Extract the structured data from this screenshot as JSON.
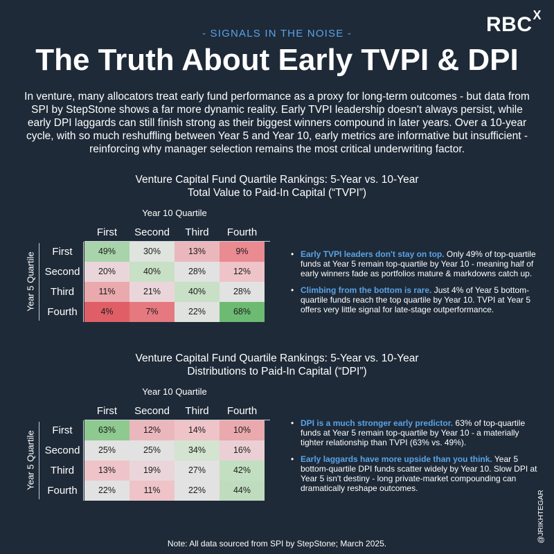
{
  "logo": {
    "main": "RBC",
    "sup": "X"
  },
  "kicker": "- SIGNALS IN THE NOISE -",
  "title": "The Truth About Early TVPI & DPI",
  "intro": "In venture, many allocators treat early fund performance as a proxy for long-term outcomes - but data from SPI by StepStone shows a far more dynamic reality. Early TVPI leadership doesn't always persist, while early DPI laggards can still finish strong as their biggest winners compound in later years. Over a 10-year cycle, with so much reshuffling between Year 5 and Year 10, early metrics are informative but insufficient - reinforcing why manager selection remains the most critical underwriting factor.",
  "tvpi": {
    "title_line1": "Venture Capital Fund Quartile Rankings: 5-Year vs. 10-Year",
    "title_line2": "Total Value to Paid-In Capital (“TVPI”)",
    "col_group_label": "Year 10 Quartile",
    "row_axis_label": "Year 5 Quartile",
    "columns": [
      "First",
      "Second",
      "Third",
      "Fourth"
    ],
    "rows": [
      {
        "label": "First",
        "cells": [
          "49%",
          "30%",
          "13%",
          "9%"
        ],
        "colors": [
          "#a9d3aa",
          "#dfe4df",
          "#eab8bc",
          "#e98b91"
        ]
      },
      {
        "label": "Second",
        "cells": [
          "20%",
          "40%",
          "28%",
          "12%"
        ],
        "colors": [
          "#ead6da",
          "#c8e0c6",
          "#e2e2e2",
          "#eec4c8"
        ]
      },
      {
        "label": "Third",
        "cells": [
          "11%",
          "21%",
          "40%",
          "28%"
        ],
        "colors": [
          "#e9a9ad",
          "#ead6da",
          "#c8e0c6",
          "#e2e2e2"
        ]
      },
      {
        "label": "Fourth",
        "cells": [
          "4%",
          "7%",
          "22%",
          "68%"
        ],
        "colors": [
          "#e05f66",
          "#e67980",
          "#e0e2e0",
          "#6dbb73"
        ]
      }
    ],
    "bullets": [
      {
        "lead": "Early TVPI leaders don't stay on top.",
        "text": " Only 49% of top-quartile funds at Year 5 remain top-quartile by Year 10 - meaning half of early winners fade as portfolios mature & markdowns catch up."
      },
      {
        "lead": "Climbing from the bottom is rare.",
        "text": " Just 4% of Year 5 bottom-quartile funds reach the top quartile by Year 10. TVPI at Year 5 offers very little signal for late-stage outperformance."
      }
    ]
  },
  "dpi": {
    "title_line1": "Venture Capital Fund Quartile Rankings: 5-Year vs. 10-Year",
    "title_line2": "Distributions to Paid-In Capital (“DPI”)",
    "col_group_label": "Year 10 Quartile",
    "row_axis_label": "Year 5 Quartile",
    "columns": [
      "First",
      "Second",
      "Third",
      "Fourth"
    ],
    "rows": [
      {
        "label": "First",
        "cells": [
          "63%",
          "12%",
          "14%",
          "10%"
        ],
        "colors": [
          "#8ec98f",
          "#eab8bc",
          "#eec4c8",
          "#e9a9ad"
        ]
      },
      {
        "label": "Second",
        "cells": [
          "25%",
          "25%",
          "34%",
          "16%"
        ],
        "colors": [
          "#e2e2e2",
          "#e2e2e2",
          "#d3e4d0",
          "#ead0d4"
        ]
      },
      {
        "label": "Third",
        "cells": [
          "13%",
          "19%",
          "27%",
          "42%"
        ],
        "colors": [
          "#eec4c8",
          "#ead6da",
          "#e2e2e2",
          "#c3dfc1"
        ]
      },
      {
        "label": "Fourth",
        "cells": [
          "22%",
          "11%",
          "22%",
          "44%"
        ],
        "colors": [
          "#e2e2e2",
          "#eec4c8",
          "#e2e2e2",
          "#c0dcbe"
        ]
      }
    ],
    "bullets": [
      {
        "lead": "DPI is a much stronger early predictor.",
        "text": " 63% of top-quartile funds at Year 5 remain top-quartile by Year 10 - a materially tighter relationship than TVPI (63% vs. 49%)."
      },
      {
        "lead": "Early laggards have more upside than you think.",
        "text": " Year 5 bottom-quartile DPI funds scatter widely by Year 10. Slow DPI at Year 5 isn't destiny - long private-market compounding can dramatically reshape outcomes."
      }
    ]
  },
  "bullet_dot": "•",
  "note": "Note: All data sourced from SPI by StepStone; March 2025.",
  "handle": "@JRIKHTEGAR"
}
